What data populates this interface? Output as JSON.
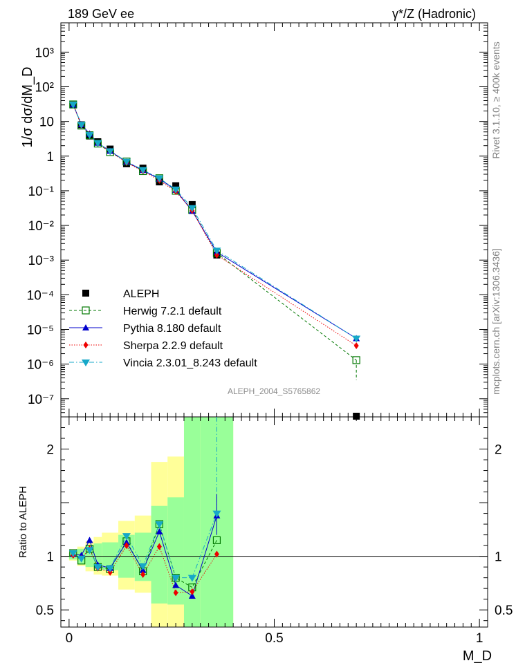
{
  "header": {
    "left": "189 GeV ee",
    "right": "γ*/Z (Hadronic)"
  },
  "side_labels": {
    "rivet": "Rivet 3.1.10, ≥ 400k events",
    "mcplots": "mcplots.cern.ch [arXiv:1306.3436]",
    "analysis": "ALEPH_2004_S5765862"
  },
  "colors": {
    "data": "#000000",
    "herwig": "#007700",
    "pythia": "#0000cc",
    "sherpa": "#ee0000",
    "vincia": "#17a8c8",
    "band_inner": "#99ff99",
    "band_outer": "#ffff99"
  },
  "chart_data": [
    {
      "type": "scatter",
      "panel": "main",
      "ylabel": "1/σ dσ/dM_D",
      "xlabel": "",
      "xlim": [
        -0.02,
        1.02
      ],
      "ylim": [
        3e-08,
        7000
      ],
      "yscale": "log",
      "ytick_labels": [
        "10⁻⁷",
        "10⁻⁶",
        "10⁻⁵",
        "10⁻⁴",
        "10⁻³",
        "10⁻²",
        "10⁻¹",
        "1",
        "10",
        "10²",
        "10³"
      ],
      "x": [
        0.01,
        0.03,
        0.05,
        0.07,
        0.1,
        0.14,
        0.18,
        0.22,
        0.26,
        0.3,
        0.36,
        0.7
      ],
      "legend_position": "lower-left",
      "series": [
        {
          "name": "ALEPH",
          "key": "data",
          "marker": "square",
          "values": [
            30,
            8,
            3.8,
            2.6,
            1.6,
            0.6,
            0.45,
            0.18,
            0.14,
            0.04,
            0.0014,
            3e-08
          ]
        },
        {
          "name": "Herwig 7.2.1 default",
          "key": "herwig",
          "marker": "open-square",
          "line": "dashed",
          "values": [
            31,
            7.6,
            4.0,
            2.3,
            1.3,
            0.7,
            0.37,
            0.23,
            0.1,
            0.028,
            0.0016,
            1.3e-06
          ]
        },
        {
          "name": "Pythia 8.180 default",
          "key": "pythia",
          "marker": "triangle-up",
          "line": "solid",
          "values": [
            30.5,
            8.2,
            4.4,
            2.4,
            1.4,
            0.68,
            0.39,
            0.22,
            0.105,
            0.026,
            0.0017,
            5.5e-06
          ]
        },
        {
          "name": "Sherpa 2.2.9 default",
          "key": "sherpa",
          "marker": "diamond",
          "line": "dotted",
          "values": [
            30.5,
            7.8,
            4.1,
            2.3,
            1.35,
            0.65,
            0.37,
            0.2,
            0.095,
            0.027,
            0.0014,
            3.4e-06
          ]
        },
        {
          "name": "Vincia 2.3.01_8.243 default",
          "key": "vincia",
          "marker": "triangle-down",
          "line": "dashdot",
          "values": [
            31,
            8.1,
            4.1,
            2.4,
            1.4,
            0.7,
            0.4,
            0.23,
            0.11,
            0.032,
            0.0019,
            5.5e-06
          ]
        }
      ]
    },
    {
      "type": "scatter",
      "panel": "ratio",
      "ylabel": "Ratio to ALEPH",
      "xlabel": "M_D",
      "xlim": [
        -0.02,
        1.02
      ],
      "ylim": [
        0.34,
        2.3
      ],
      "ytick_labels": [
        "0.5",
        "1",
        "2"
      ],
      "ytick_values": [
        0.5,
        1,
        2
      ],
      "xtick_labels": [
        "0",
        "0.5",
        "1"
      ],
      "xtick_values": [
        0,
        0.5,
        1
      ],
      "x": [
        0.01,
        0.03,
        0.05,
        0.07,
        0.1,
        0.14,
        0.18,
        0.22,
        0.26,
        0.3,
        0.36
      ],
      "bands": [
        {
          "x": [
            0.0,
            0.02
          ],
          "inner": [
            0.97,
            1.03
          ],
          "outer": [
            0.96,
            1.04
          ]
        },
        {
          "x": [
            0.02,
            0.04
          ],
          "inner": [
            0.93,
            1.07
          ],
          "outer": [
            0.91,
            1.09
          ]
        },
        {
          "x": [
            0.04,
            0.06
          ],
          "inner": [
            0.9,
            1.1
          ],
          "outer": [
            0.86,
            1.14
          ]
        },
        {
          "x": [
            0.06,
            0.08
          ],
          "inner": [
            0.88,
            1.12
          ],
          "outer": [
            0.83,
            1.18
          ]
        },
        {
          "x": [
            0.08,
            0.12
          ],
          "inner": [
            0.87,
            1.13
          ],
          "outer": [
            0.82,
            1.22
          ]
        },
        {
          "x": [
            0.12,
            0.16
          ],
          "inner": [
            0.8,
            1.2
          ],
          "outer": [
            0.69,
            1.33
          ]
        },
        {
          "x": [
            0.16,
            0.2
          ],
          "inner": [
            0.77,
            1.22
          ],
          "outer": [
            0.66,
            1.38
          ]
        },
        {
          "x": [
            0.2,
            0.24
          ],
          "inner": [
            0.56,
            1.47
          ],
          "outer": [
            0.34,
            1.88
          ]
        },
        {
          "x": [
            0.24,
            0.28
          ],
          "inner": [
            0.55,
            1.55
          ],
          "outer": [
            0.34,
            1.93
          ]
        },
        {
          "x": [
            0.28,
            0.32
          ],
          "inner": [
            0.34,
            2.3
          ],
          "outer": [
            0.34,
            2.3
          ]
        },
        {
          "x": [
            0.32,
            0.4
          ],
          "inner": [
            0.34,
            2.3
          ],
          "outer": [
            0.34,
            2.3
          ]
        }
      ],
      "series": [
        {
          "name": "Herwig 7.2.1 default",
          "key": "herwig",
          "marker": "open-square",
          "line": "dashed",
          "values": [
            1.03,
            0.96,
            1.07,
            0.9,
            0.88,
            1.14,
            0.86,
            1.3,
            0.8,
            0.71,
            1.15
          ]
        },
        {
          "name": "Pythia 8.180 default",
          "key": "pythia",
          "marker": "triangle-up",
          "line": "solid",
          "values": [
            1.02,
            1.01,
            1.15,
            0.92,
            0.89,
            1.13,
            0.87,
            1.23,
            0.73,
            0.63,
            1.38
          ]
        },
        {
          "name": "Sherpa 2.2.9 default",
          "key": "sherpa",
          "marker": "diamond",
          "line": "dotted",
          "values": [
            1.01,
            0.98,
            1.07,
            0.89,
            0.85,
            1.1,
            0.83,
            1.09,
            0.66,
            0.67,
            1.02
          ]
        },
        {
          "name": "Vincia 2.3.01_8.243 default",
          "key": "vincia",
          "marker": "triangle-down",
          "line": "dashdot",
          "values": [
            1.03,
            0.98,
            1.06,
            0.9,
            0.89,
            1.19,
            0.91,
            1.3,
            0.8,
            0.8,
            1.4
          ]
        }
      ]
    }
  ]
}
